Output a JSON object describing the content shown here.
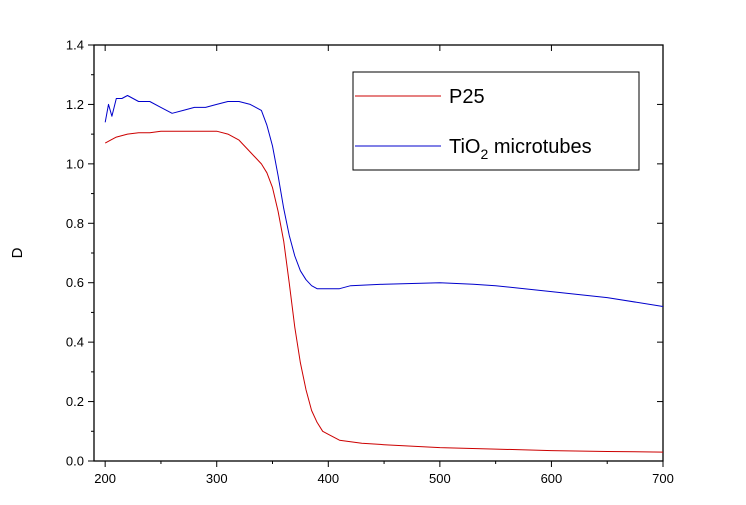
{
  "chart_data": {
    "type": "line",
    "title": "",
    "xlabel": "",
    "ylabel": "D",
    "xlim": [
      190,
      700
    ],
    "ylim": [
      0.0,
      1.4
    ],
    "xticks": [
      200,
      300,
      400,
      500,
      600,
      700
    ],
    "xtick_labels": [
      "200",
      "300",
      "400",
      "500",
      "600",
      "700"
    ],
    "yticks": [
      0.0,
      0.2,
      0.4,
      0.6,
      0.8,
      1.0,
      1.2,
      1.4
    ],
    "ytick_labels": [
      "0.0",
      "0.2",
      "0.4",
      "0.6",
      "0.8",
      "1.0",
      "1.2",
      "1.4"
    ],
    "grid": false,
    "legend": {
      "position": "top-right"
    },
    "series": [
      {
        "name": "P25",
        "color": "#cc0000",
        "x": [
          200,
          205,
          210,
          220,
          230,
          240,
          250,
          260,
          270,
          280,
          290,
          300,
          310,
          320,
          330,
          340,
          345,
          350,
          355,
          360,
          365,
          370,
          375,
          380,
          385,
          390,
          395,
          400,
          410,
          420,
          430,
          450,
          500,
          550,
          600,
          650,
          700
        ],
        "y": [
          1.07,
          1.08,
          1.09,
          1.1,
          1.105,
          1.105,
          1.11,
          1.11,
          1.11,
          1.11,
          1.11,
          1.11,
          1.1,
          1.08,
          1.04,
          1.0,
          0.97,
          0.92,
          0.84,
          0.74,
          0.6,
          0.45,
          0.33,
          0.24,
          0.17,
          0.13,
          0.1,
          0.09,
          0.07,
          0.065,
          0.06,
          0.055,
          0.045,
          0.04,
          0.035,
          0.032,
          0.03
        ]
      },
      {
        "name": "TiO2 microtubes",
        "color": "#0000cc",
        "x": [
          200,
          203,
          206,
          210,
          215,
          220,
          230,
          240,
          250,
          260,
          270,
          280,
          290,
          300,
          310,
          320,
          330,
          340,
          345,
          350,
          355,
          360,
          365,
          370,
          375,
          380,
          385,
          390,
          400,
          410,
          420,
          450,
          500,
          530,
          550,
          600,
          650,
          700
        ],
        "y": [
          1.14,
          1.2,
          1.16,
          1.22,
          1.22,
          1.23,
          1.21,
          1.21,
          1.19,
          1.17,
          1.18,
          1.19,
          1.19,
          1.2,
          1.21,
          1.21,
          1.2,
          1.18,
          1.13,
          1.06,
          0.96,
          0.85,
          0.76,
          0.69,
          0.64,
          0.61,
          0.59,
          0.58,
          0.58,
          0.58,
          0.59,
          0.595,
          0.6,
          0.595,
          0.59,
          0.57,
          0.55,
          0.52
        ]
      }
    ],
    "legend_entries": [
      {
        "text": "P25",
        "color": "#cc0000"
      },
      {
        "text": "TiO",
        "sub": "2",
        "suffix": " microtubes",
        "color": "#0000cc"
      }
    ]
  }
}
